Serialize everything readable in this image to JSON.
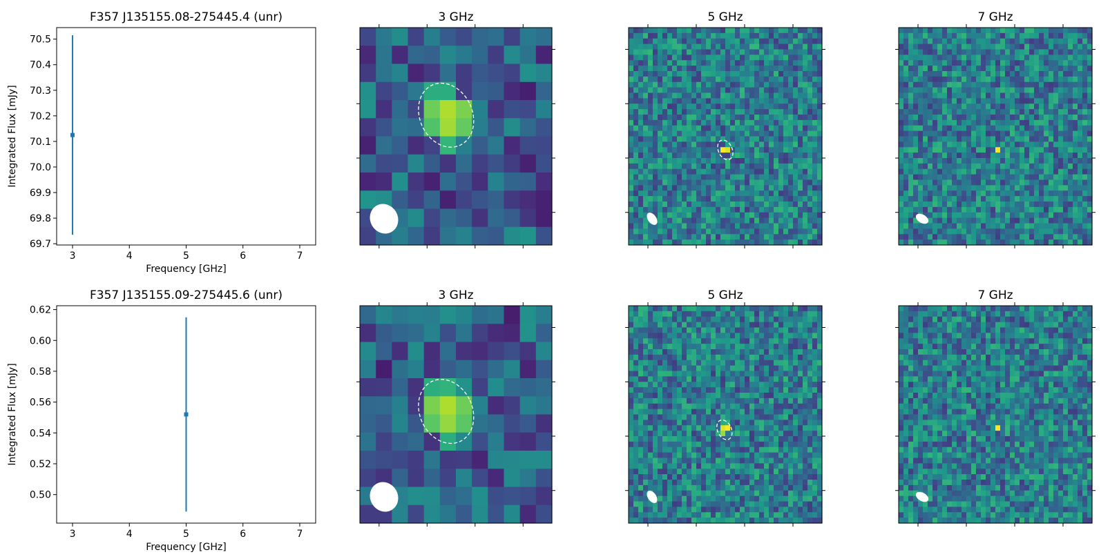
{
  "chart_data": [
    {
      "type": "scatter",
      "title": "F357 J135155.08-275445.4 (unr)",
      "xlabel": "Frequency [GHz]",
      "ylabel": "Integrated Flux [mJy]",
      "xlim": [
        2.72,
        7.28
      ],
      "ylim": [
        69.695,
        70.545
      ],
      "x_ticks": [
        "3",
        "4",
        "5",
        "6",
        "7"
      ],
      "y_ticks": [
        "69.7",
        "69.8",
        "69.9",
        "70.0",
        "70.1",
        "70.2",
        "70.3",
        "70.4",
        "70.5"
      ],
      "points": [
        {
          "x": 3,
          "y": 70.125,
          "yerr_low": 69.735,
          "yerr_high": 70.515
        }
      ],
      "color": "#1f77b4"
    },
    {
      "type": "heatmap",
      "title": "3 GHz",
      "grid": [
        12,
        12
      ],
      "colormap": "viridis",
      "source_pixels": [
        {
          "row": 3,
          "col": 4,
          "v": 0.62
        },
        {
          "row": 3,
          "col": 5,
          "v": 0.62
        },
        {
          "row": 4,
          "col": 4,
          "v": 0.78
        },
        {
          "row": 4,
          "col": 5,
          "v": 0.88
        },
        {
          "row": 4,
          "col": 6,
          "v": 0.8
        },
        {
          "row": 5,
          "col": 4,
          "v": 0.72
        },
        {
          "row": 5,
          "col": 5,
          "v": 0.86
        },
        {
          "row": 5,
          "col": 6,
          "v": 0.76
        },
        {
          "row": 6,
          "col": 5,
          "v": 0.66
        }
      ]
    },
    {
      "type": "heatmap",
      "title": "5 GHz",
      "grid": [
        40,
        40
      ],
      "colormap": "viridis",
      "source_pixels": [
        {
          "row": 22,
          "col": 19,
          "v": 1.0
        },
        {
          "row": 22,
          "col": 20,
          "v": 0.95
        }
      ]
    },
    {
      "type": "heatmap",
      "title": "7 GHz",
      "grid": [
        40,
        40
      ],
      "colormap": "viridis",
      "source_pixels": [
        {
          "row": 22,
          "col": 20,
          "v": 1.0
        }
      ]
    },
    {
      "type": "scatter",
      "title": "F357 J135155.09-275445.6 (unr)",
      "xlabel": "Frequency [GHz]",
      "ylabel": "Integrated Flux [mJy]",
      "xlim": [
        2.72,
        7.28
      ],
      "ylim": [
        0.4815,
        0.6225
      ],
      "x_ticks": [
        "3",
        "4",
        "5",
        "6",
        "7"
      ],
      "y_ticks": [
        "0.50",
        "0.52",
        "0.54",
        "0.56",
        "0.58",
        "0.60",
        "0.62"
      ],
      "points": [
        {
          "x": 5,
          "y": 0.552,
          "yerr_low": 0.489,
          "yerr_high": 0.615
        }
      ],
      "color": "#1f77b4"
    },
    {
      "type": "heatmap",
      "title": "3 GHz",
      "grid": [
        12,
        12
      ],
      "colormap": "viridis",
      "source_pixels": [
        {
          "row": 4,
          "col": 4,
          "v": 0.62
        },
        {
          "row": 4,
          "col": 5,
          "v": 0.65
        },
        {
          "row": 5,
          "col": 4,
          "v": 0.8
        },
        {
          "row": 5,
          "col": 5,
          "v": 0.88
        },
        {
          "row": 5,
          "col": 6,
          "v": 0.78
        },
        {
          "row": 6,
          "col": 4,
          "v": 0.74
        },
        {
          "row": 6,
          "col": 5,
          "v": 0.84
        },
        {
          "row": 6,
          "col": 6,
          "v": 0.74
        },
        {
          "row": 7,
          "col": 5,
          "v": 0.62
        }
      ]
    },
    {
      "type": "heatmap",
      "title": "5 GHz",
      "grid": [
        40,
        40
      ],
      "colormap": "viridis",
      "source_pixels": [
        {
          "row": 22,
          "col": 19,
          "v": 0.95
        },
        {
          "row": 22,
          "col": 20,
          "v": 1.0
        },
        {
          "row": 23,
          "col": 19,
          "v": 0.85
        }
      ]
    },
    {
      "type": "heatmap",
      "title": "7 GHz",
      "grid": [
        40,
        40
      ],
      "colormap": "viridis",
      "source_pixels": [
        {
          "row": 22,
          "col": 20,
          "v": 1.0
        }
      ]
    }
  ]
}
